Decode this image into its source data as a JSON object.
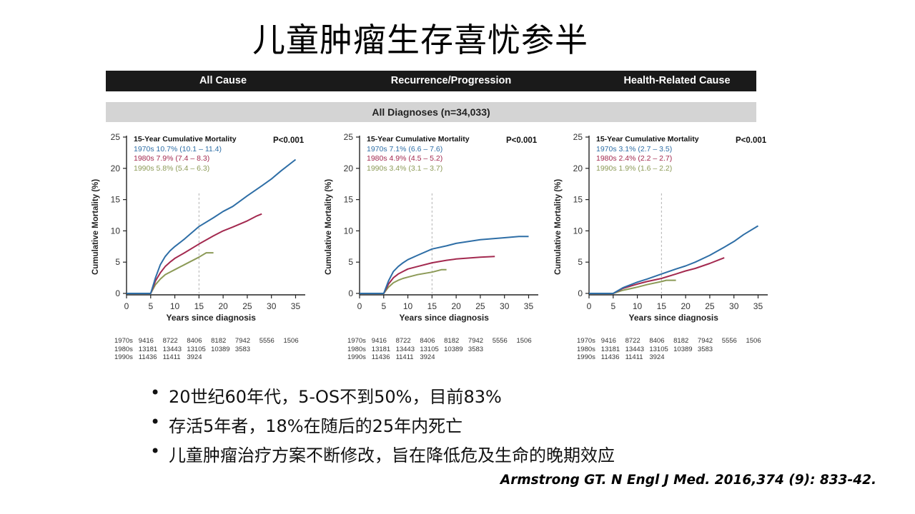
{
  "slide": {
    "title": "儿童肿瘤生存喜忧参半",
    "header_tabs": [
      "All Cause",
      "Recurrence/Progression",
      "Health-Related Cause"
    ],
    "subheader": "All Diagnoses (n=34,033)",
    "bullets": [
      "20世纪60年代，5-OS不到50%，目前83%",
      "存活5年者，18%在随后的25年内死亡",
      "儿童肿瘤治疗方案不断修改，旨在降低危及生命的晚期效应"
    ],
    "bullet_glyph": "•",
    "citation": "Armstrong GT. N Engl J Med. 2016,374 (9): 833-42."
  },
  "colors": {
    "1970s": "#2e6ea6",
    "1980s": "#a3294f",
    "1990s": "#8c9a57",
    "header_bg": "#1a1a1a",
    "subheader_bg": "#d4d4d4"
  },
  "chart_data": [
    {
      "type": "line",
      "title": "All Cause",
      "xlabel": "Years since diagnosis",
      "ylabel": "Cumulative Mortality (%)",
      "xlim": [
        0,
        37
      ],
      "ylim": [
        0,
        25
      ],
      "xticks": [
        0,
        5,
        10,
        15,
        20,
        25,
        30,
        35
      ],
      "yticks": [
        0,
        5,
        10,
        15,
        20,
        25
      ],
      "reference_line_x": 15,
      "legend_title": "15-Year Cumulative Mortality",
      "legend": [
        "1970s 10.7% (10.1 – 11.4)",
        "1980s 7.9% (7.4 – 8.3)",
        "1990s 5.8% (5.4 – 6.3)"
      ],
      "p_value": "P<0.001",
      "series": [
        {
          "name": "1970s",
          "x": [
            0,
            5,
            6,
            7,
            8,
            9,
            10,
            12,
            15,
            18,
            20,
            22,
            25,
            28,
            30,
            32,
            35
          ],
          "y": [
            0,
            0,
            2.5,
            4.6,
            5.9,
            6.8,
            7.5,
            8.7,
            10.7,
            12.1,
            13.1,
            13.9,
            15.6,
            17.2,
            18.3,
            19.6,
            21.4
          ]
        },
        {
          "name": "1980s",
          "x": [
            0,
            5,
            6,
            7,
            8,
            9,
            10,
            12,
            15,
            18,
            20,
            22,
            25,
            27,
            28
          ],
          "y": [
            0,
            0,
            2.0,
            3.3,
            4.3,
            5.0,
            5.6,
            6.5,
            7.9,
            9.2,
            10.0,
            10.6,
            11.6,
            12.4,
            12.7
          ]
        },
        {
          "name": "1990s",
          "x": [
            0,
            5,
            6,
            7,
            8,
            9,
            10,
            12,
            15,
            16.5,
            18
          ],
          "y": [
            0,
            0,
            1.4,
            2.3,
            3.0,
            3.4,
            3.8,
            4.6,
            5.8,
            6.5,
            6.5
          ]
        }
      ],
      "at_risk": {
        "rows": [
          {
            "label": "1970s",
            "values": [
              "9416",
              "8722",
              "8406",
              "8182",
              "7942",
              "5556",
              "1506"
            ]
          },
          {
            "label": "1980s",
            "values": [
              "13181",
              "13443",
              "13105",
              "10389",
              "3583"
            ]
          },
          {
            "label": "1990s",
            "values": [
              "11436",
              "11411",
              "3924"
            ]
          }
        ]
      }
    },
    {
      "type": "line",
      "title": "Recurrence/Progression",
      "xlabel": "Years since diagnosis",
      "ylabel": "Cumulative Mortality (%)",
      "xlim": [
        0,
        37
      ],
      "ylim": [
        0,
        25
      ],
      "xticks": [
        0,
        5,
        10,
        15,
        20,
        25,
        30,
        35
      ],
      "yticks": [
        0,
        5,
        10,
        15,
        20,
        25
      ],
      "reference_line_x": 15,
      "legend_title": "15-Year Cumulative Mortality",
      "legend": [
        "1970s 7.1% (6.6 – 7.6)",
        "1980s 4.9% (4.5 – 5.2)",
        "1990s 3.4% (3.1 – 3.7)"
      ],
      "p_value": "P<0.001",
      "series": [
        {
          "name": "1970s",
          "x": [
            0,
            5,
            6,
            7,
            8,
            9,
            10,
            12,
            15,
            18,
            20,
            25,
            30,
            33,
            35
          ],
          "y": [
            0,
            0,
            2.0,
            3.5,
            4.3,
            4.9,
            5.4,
            6.1,
            7.1,
            7.6,
            8.0,
            8.6,
            8.9,
            9.1,
            9.1
          ]
        },
        {
          "name": "1980s",
          "x": [
            0,
            5,
            6,
            7,
            8,
            9,
            10,
            12,
            15,
            18,
            20,
            25,
            28
          ],
          "y": [
            0,
            0,
            1.5,
            2.5,
            3.1,
            3.5,
            3.9,
            4.3,
            4.9,
            5.3,
            5.5,
            5.8,
            5.9
          ]
        },
        {
          "name": "1990s",
          "x": [
            0,
            5,
            6,
            7,
            8,
            9,
            10,
            12,
            15,
            17,
            18
          ],
          "y": [
            0,
            0,
            1.0,
            1.7,
            2.1,
            2.4,
            2.6,
            3.0,
            3.4,
            3.8,
            3.8
          ]
        }
      ],
      "at_risk": {
        "rows": [
          {
            "label": "1970s",
            "values": [
              "9416",
              "8722",
              "8406",
              "8182",
              "7942",
              "5556",
              "1506"
            ]
          },
          {
            "label": "1980s",
            "values": [
              "13181",
              "13443",
              "13105",
              "10389",
              "3583"
            ]
          },
          {
            "label": "1990s",
            "values": [
              "11436",
              "11411",
              "3924"
            ]
          }
        ]
      }
    },
    {
      "type": "line",
      "title": "Health-Related Cause",
      "xlabel": "Years since diagnosis",
      "ylabel": "Cumulative Mortality (%)",
      "xlim": [
        0,
        37
      ],
      "ylim": [
        0,
        25
      ],
      "xticks": [
        0,
        5,
        10,
        15,
        20,
        25,
        30,
        35
      ],
      "yticks": [
        0,
        5,
        10,
        15,
        20,
        25
      ],
      "reference_line_x": 15,
      "legend_title": "15-Year Cumulative Mortality",
      "legend": [
        "1970s 3.1% (2.7 – 3.5)",
        "1980s 2.4% (2.2 – 2.7)",
        "1990s 1.9% (1.6 – 2.2)"
      ],
      "p_value": "P<0.001",
      "series": [
        {
          "name": "1970s",
          "x": [
            0,
            5,
            7,
            10,
            12,
            15,
            18,
            20,
            22,
            25,
            28,
            30,
            32,
            35
          ],
          "y": [
            0,
            0,
            0.9,
            1.8,
            2.3,
            3.1,
            3.9,
            4.4,
            5.0,
            6.1,
            7.4,
            8.3,
            9.4,
            10.8
          ]
        },
        {
          "name": "1980s",
          "x": [
            0,
            5,
            7,
            10,
            12,
            15,
            18,
            20,
            22,
            25,
            27,
            28
          ],
          "y": [
            0,
            0,
            0.8,
            1.5,
            1.9,
            2.4,
            3.1,
            3.6,
            4.0,
            4.8,
            5.4,
            5.7
          ]
        },
        {
          "name": "1990s",
          "x": [
            0,
            5,
            7,
            10,
            12,
            15,
            16,
            18
          ],
          "y": [
            0,
            0,
            0.5,
            1.0,
            1.4,
            1.9,
            2.1,
            2.1
          ]
        }
      ],
      "at_risk": {
        "rows": [
          {
            "label": "1970s",
            "values": [
              "9416",
              "8722",
              "8406",
              "8182",
              "7942",
              "5556",
              "1506"
            ]
          },
          {
            "label": "1980s",
            "values": [
              "13181",
              "13443",
              "13105",
              "10389",
              "3583"
            ]
          },
          {
            "label": "1990s",
            "values": [
              "11436",
              "11411",
              "3924"
            ]
          }
        ]
      }
    }
  ]
}
